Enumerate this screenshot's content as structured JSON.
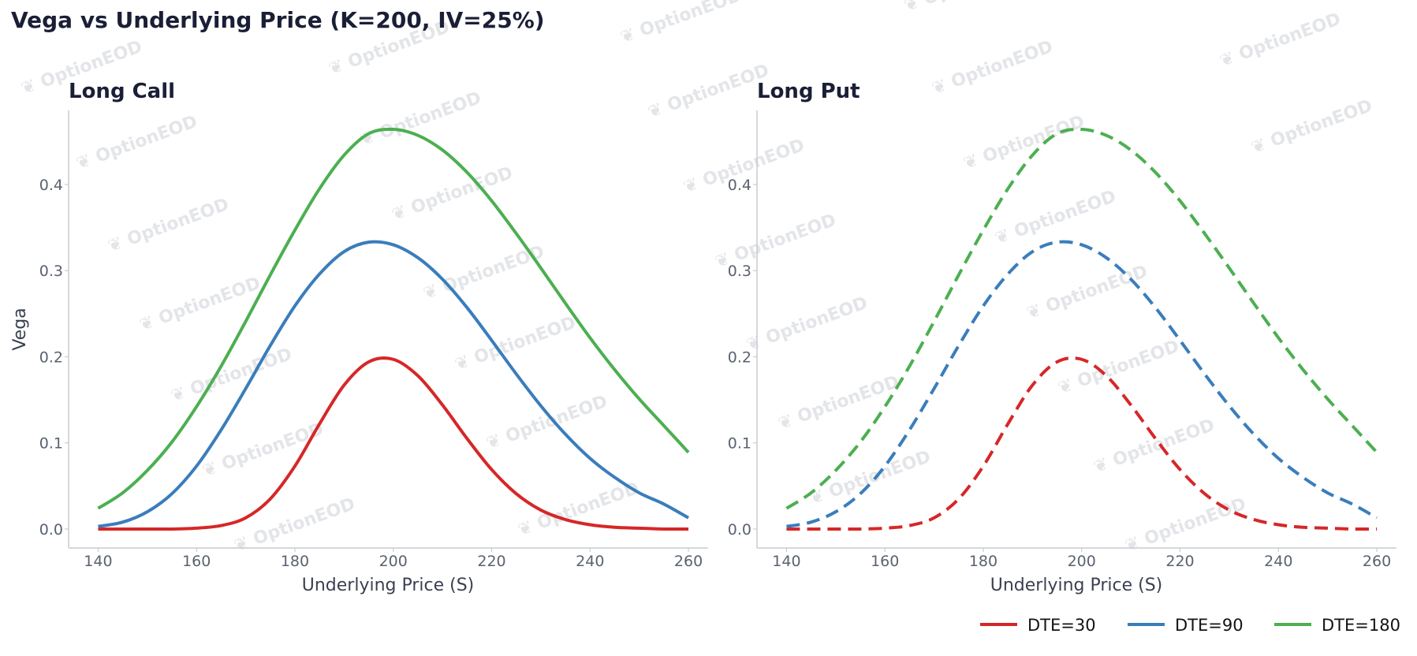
{
  "figure": {
    "title": "Vega vs Underlying Price (K=200, IV=25%)",
    "watermark": "OptionEOD"
  },
  "colors": {
    "dte30": "#d62728",
    "dte90": "#3a7dbb",
    "dte180": "#4caf50",
    "text": "#1a1f36",
    "tick": "#5a6270",
    "axis": "#c8ccd2",
    "watermark": "#e3e5e9"
  },
  "legend": {
    "placement": "bottom-right",
    "items": [
      {
        "label": "DTE=30",
        "color": "#d62728"
      },
      {
        "label": "DTE=90",
        "color": "#3a7dbb"
      },
      {
        "label": "DTE=180",
        "color": "#4caf50"
      }
    ]
  },
  "chart_data": [
    {
      "type": "line",
      "title": "Long Call",
      "xlabel": "Underlying Price (S)",
      "ylabel": "Vega",
      "line_style": "solid",
      "xlim": [
        134,
        264
      ],
      "ylim": [
        -0.022,
        0.486
      ],
      "xticks": [
        140,
        160,
        180,
        200,
        220,
        240,
        260
      ],
      "yticks": [
        "0.0",
        "0.1",
        "0.2",
        "0.3",
        "0.4"
      ],
      "grid": false,
      "x": [
        140,
        145,
        150,
        155,
        160,
        165,
        170,
        175,
        180,
        185,
        190,
        195,
        200,
        205,
        210,
        215,
        220,
        225,
        230,
        235,
        240,
        245,
        250,
        255,
        260
      ],
      "series": [
        {
          "name": "DTE=30",
          "values": [
            0.0,
            0.0,
            0.0,
            0.0,
            0.001,
            0.004,
            0.013,
            0.035,
            0.073,
            0.122,
            0.167,
            0.194,
            0.197,
            0.178,
            0.144,
            0.105,
            0.069,
            0.041,
            0.022,
            0.011,
            0.005,
            0.002,
            0.001,
            0.0,
            0.0
          ]
        },
        {
          "name": "DTE=90",
          "values": [
            0.003,
            0.008,
            0.02,
            0.041,
            0.073,
            0.115,
            0.163,
            0.213,
            0.259,
            0.296,
            0.322,
            0.333,
            0.33,
            0.315,
            0.29,
            0.257,
            0.219,
            0.18,
            0.143,
            0.11,
            0.082,
            0.06,
            0.042,
            0.029,
            0.013
          ]
        },
        {
          "name": "DTE=180",
          "values": [
            0.024,
            0.042,
            0.068,
            0.101,
            0.142,
            0.189,
            0.241,
            0.295,
            0.347,
            0.395,
            0.434,
            0.459,
            0.464,
            0.457,
            0.44,
            0.414,
            0.381,
            0.343,
            0.303,
            0.262,
            0.222,
            0.185,
            0.151,
            0.12,
            0.089
          ]
        }
      ]
    },
    {
      "type": "line",
      "title": "Long Put",
      "xlabel": "Underlying Price (S)",
      "ylabel": "",
      "line_style": "dashed",
      "xlim": [
        134,
        264
      ],
      "ylim": [
        -0.022,
        0.486
      ],
      "xticks": [
        140,
        160,
        180,
        200,
        220,
        240,
        260
      ],
      "yticks": [
        "0.0",
        "0.1",
        "0.2",
        "0.3",
        "0.4"
      ],
      "grid": false,
      "x": [
        140,
        145,
        150,
        155,
        160,
        165,
        170,
        175,
        180,
        185,
        190,
        195,
        200,
        205,
        210,
        215,
        220,
        225,
        230,
        235,
        240,
        245,
        250,
        255,
        260
      ],
      "series": [
        {
          "name": "DTE=30",
          "values": [
            0.0,
            0.0,
            0.0,
            0.0,
            0.001,
            0.004,
            0.013,
            0.035,
            0.073,
            0.122,
            0.167,
            0.194,
            0.197,
            0.178,
            0.144,
            0.105,
            0.069,
            0.041,
            0.022,
            0.011,
            0.005,
            0.002,
            0.001,
            0.0,
            0.0
          ]
        },
        {
          "name": "DTE=90",
          "values": [
            0.003,
            0.008,
            0.02,
            0.041,
            0.073,
            0.115,
            0.163,
            0.213,
            0.259,
            0.296,
            0.322,
            0.333,
            0.33,
            0.315,
            0.29,
            0.257,
            0.219,
            0.18,
            0.143,
            0.11,
            0.082,
            0.06,
            0.042,
            0.029,
            0.013
          ]
        },
        {
          "name": "DTE=180",
          "values": [
            0.024,
            0.042,
            0.068,
            0.101,
            0.142,
            0.189,
            0.241,
            0.295,
            0.347,
            0.395,
            0.434,
            0.459,
            0.464,
            0.457,
            0.44,
            0.414,
            0.381,
            0.343,
            0.303,
            0.262,
            0.222,
            0.185,
            0.151,
            0.12,
            0.089
          ]
        }
      ]
    }
  ]
}
